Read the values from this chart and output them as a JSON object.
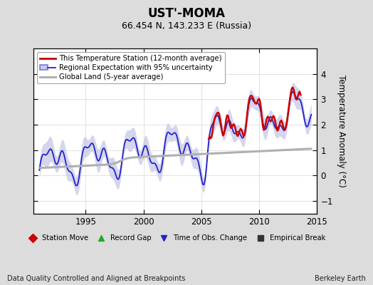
{
  "title": "UST'-MOMA",
  "subtitle": "66.454 N, 143.233 E (Russia)",
  "ylabel": "Temperature Anomaly (°C)",
  "footer_left": "Data Quality Controlled and Aligned at Breakpoints",
  "footer_right": "Berkeley Earth",
  "xlim": [
    1990.5,
    2015.0
  ],
  "ylim": [
    -1.5,
    5.0
  ],
  "yticks": [
    -1,
    0,
    1,
    2,
    3,
    4
  ],
  "xticks": [
    1995,
    2000,
    2005,
    2010,
    2015
  ],
  "bg_color": "#dcdcdc",
  "plot_bg_color": "#ffffff",
  "legend_entries": [
    {
      "label": "This Temperature Station (12-month average)",
      "color": "#cc0000",
      "lw": 1.8
    },
    {
      "label": "Regional Expectation with 95% uncertainty",
      "color": "#2222cc",
      "lw": 1.3
    },
    {
      "label": "Global Land (5-year average)",
      "color": "#b0b0b0",
      "lw": 2.2
    }
  ],
  "marker_legend": [
    {
      "marker": "D",
      "color": "#cc0000",
      "label": "Station Move"
    },
    {
      "marker": "^",
      "color": "#22aa22",
      "label": "Record Gap"
    },
    {
      "marker": "v",
      "color": "#2222cc",
      "label": "Time of Obs. Change"
    },
    {
      "marker": "s",
      "color": "#333333",
      "label": "Empirical Break"
    }
  ]
}
